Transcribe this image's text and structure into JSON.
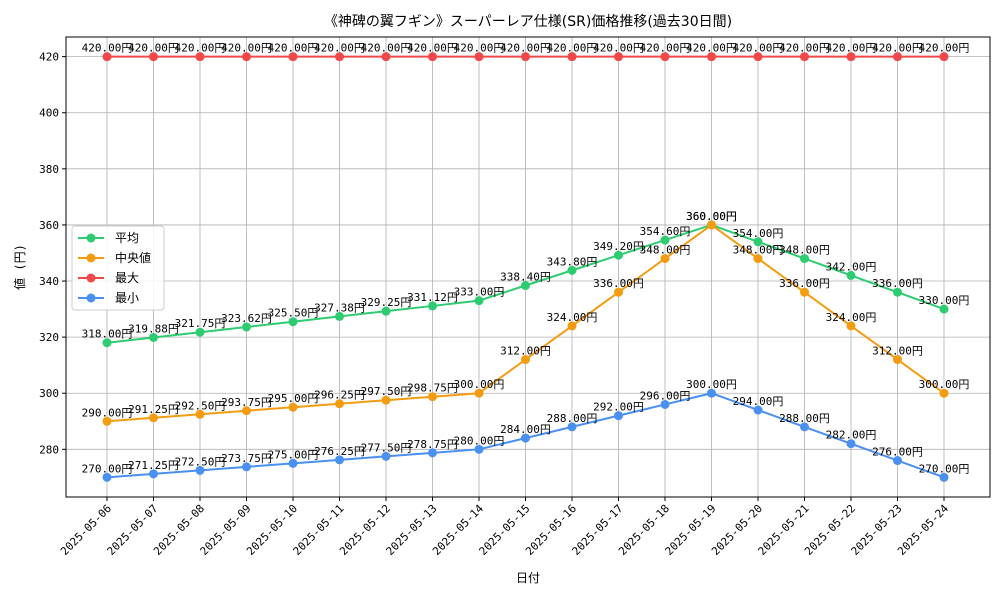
{
  "chart_data": {
    "type": "line",
    "title": "《神碑の翼フギン》スーパーレア仕様(SR)価格推移(過去30日間)",
    "xlabel": "日付",
    "ylabel": "値 (円)",
    "value_suffix": "円",
    "ylim": [
      263,
      427
    ],
    "yticks": [
      280,
      300,
      320,
      340,
      360,
      380,
      400,
      420
    ],
    "grid": true,
    "legend_position": "center-left",
    "categories": [
      "2025-05-06",
      "2025-05-07",
      "2025-05-08",
      "2025-05-09",
      "2025-05-10",
      "2025-05-11",
      "2025-05-12",
      "2025-05-13",
      "2025-05-14",
      "2025-05-15",
      "2025-05-16",
      "2025-05-17",
      "2025-05-18",
      "2025-05-19",
      "2025-05-20",
      "2025-05-21",
      "2025-05-22",
      "2025-05-23",
      "2025-05-24"
    ],
    "series": [
      {
        "name": "平均",
        "color": "#2ecc71",
        "values": [
          318.0,
          319.88,
          321.75,
          323.62,
          325.5,
          327.38,
          329.25,
          331.12,
          333.0,
          338.4,
          343.8,
          349.2,
          354.6,
          360.0,
          354.0,
          348.0,
          342.0,
          336.0,
          330.0
        ]
      },
      {
        "name": "中央値",
        "color": "#f39c12",
        "values": [
          290.0,
          291.25,
          292.5,
          293.75,
          295.0,
          296.25,
          297.5,
          298.75,
          300.0,
          312.0,
          324.0,
          336.0,
          348.0,
          360.0,
          348.0,
          336.0,
          324.0,
          312.0,
          300.0
        ]
      },
      {
        "name": "最大",
        "color": "#f04848",
        "values": [
          420.0,
          420.0,
          420.0,
          420.0,
          420.0,
          420.0,
          420.0,
          420.0,
          420.0,
          420.0,
          420.0,
          420.0,
          420.0,
          420.0,
          420.0,
          420.0,
          420.0,
          420.0,
          420.0
        ]
      },
      {
        "name": "最小",
        "color": "#4a90f0",
        "values": [
          270.0,
          271.25,
          272.5,
          273.75,
          275.0,
          276.25,
          277.5,
          278.75,
          280.0,
          284.0,
          288.0,
          292.0,
          296.0,
          300.0,
          294.0,
          288.0,
          282.0,
          276.0,
          270.0
        ]
      }
    ]
  }
}
